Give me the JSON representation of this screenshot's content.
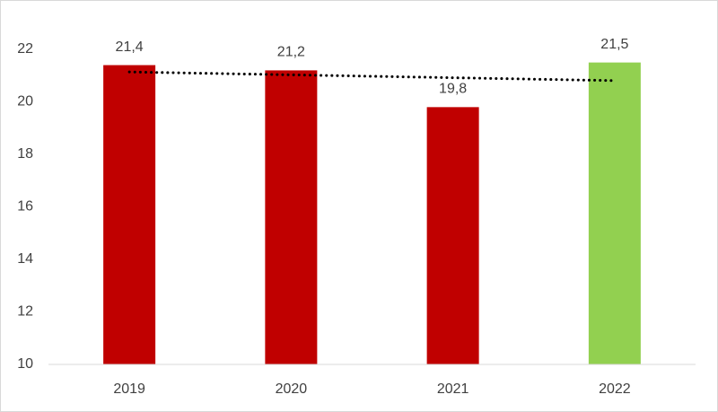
{
  "chart_data": {
    "type": "bar",
    "categories": [
      "2019",
      "2020",
      "2021",
      "2022"
    ],
    "values": [
      21.4,
      21.2,
      19.8,
      21.5
    ],
    "value_labels": [
      "21,4",
      "21,2",
      "19,8",
      "21,5"
    ],
    "colors": [
      "#c00000",
      "#c00000",
      "#c00000",
      "#92d050"
    ],
    "ylim": [
      10,
      22
    ],
    "yticks": [
      10,
      12,
      14,
      16,
      18,
      20,
      22
    ],
    "grid": false,
    "trendline": true
  }
}
